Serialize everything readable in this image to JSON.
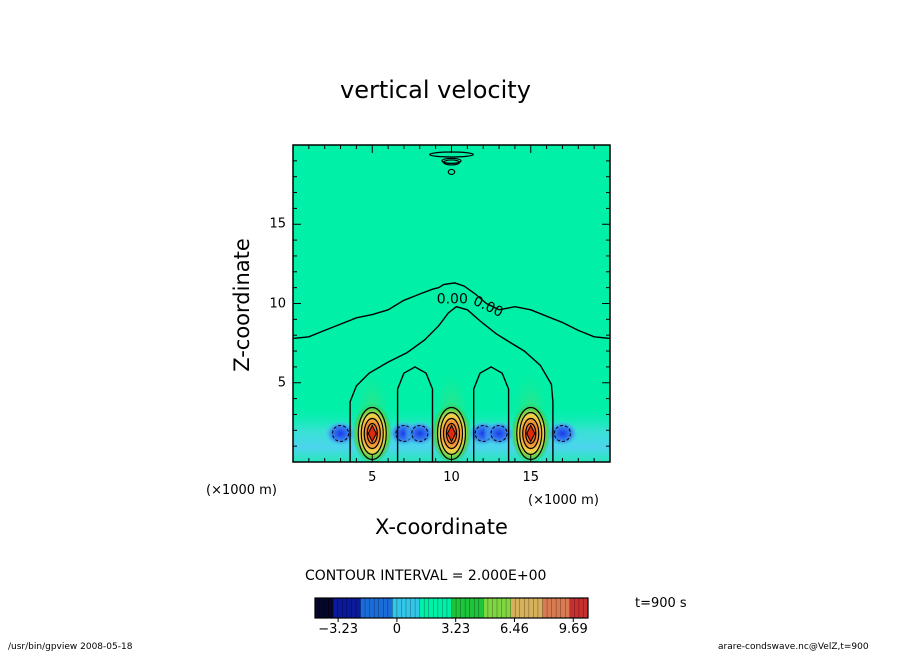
{
  "figure": {
    "title": "vertical velocity",
    "contour_interval_label": "CONTOUR INTERVAL = 2.000E+00",
    "time_label": "t=900  s",
    "footer_left": "/usr/bin/gpview   2008-05-18",
    "footer_right": "arare-condswave.nc@VelZ,t=900"
  },
  "chart_data": {
    "type": "heatmap",
    "title": "vertical velocity",
    "xlabel": "X-coordinate",
    "ylabel": "Z-coordinate",
    "x_units": "(×1000 m)",
    "y_units": "(×1000 m)",
    "xlim": [
      0,
      20
    ],
    "ylim": [
      0,
      20
    ],
    "x_ticks": [
      5,
      10,
      15
    ],
    "y_ticks": [
      5,
      10,
      15
    ],
    "contour_interval": 2.0,
    "contour_labels": [
      "0.00",
      "0.00"
    ],
    "updraft_cores": [
      {
        "x": 5,
        "z": 1.8,
        "max": 9.69
      },
      {
        "x": 10,
        "z": 1.8,
        "max": 9.69
      },
      {
        "x": 15,
        "z": 1.8,
        "max": 9.69
      }
    ],
    "colorbar": {
      "min": -4.5,
      "max": 10.5,
      "tick_values": [
        -3.23,
        0,
        3.23,
        6.46,
        9.69
      ],
      "tick_labels": [
        "−3.23",
        "0",
        "3.23",
        "6.46",
        "9.69"
      ],
      "colors": [
        "#06062a",
        "#0a1a9a",
        "#1a6cd8",
        "#33c6e8",
        "#00f0a8",
        "#1ec43a",
        "#7ed642",
        "#d6b05a",
        "#d87a52",
        "#c83030"
      ]
    }
  }
}
